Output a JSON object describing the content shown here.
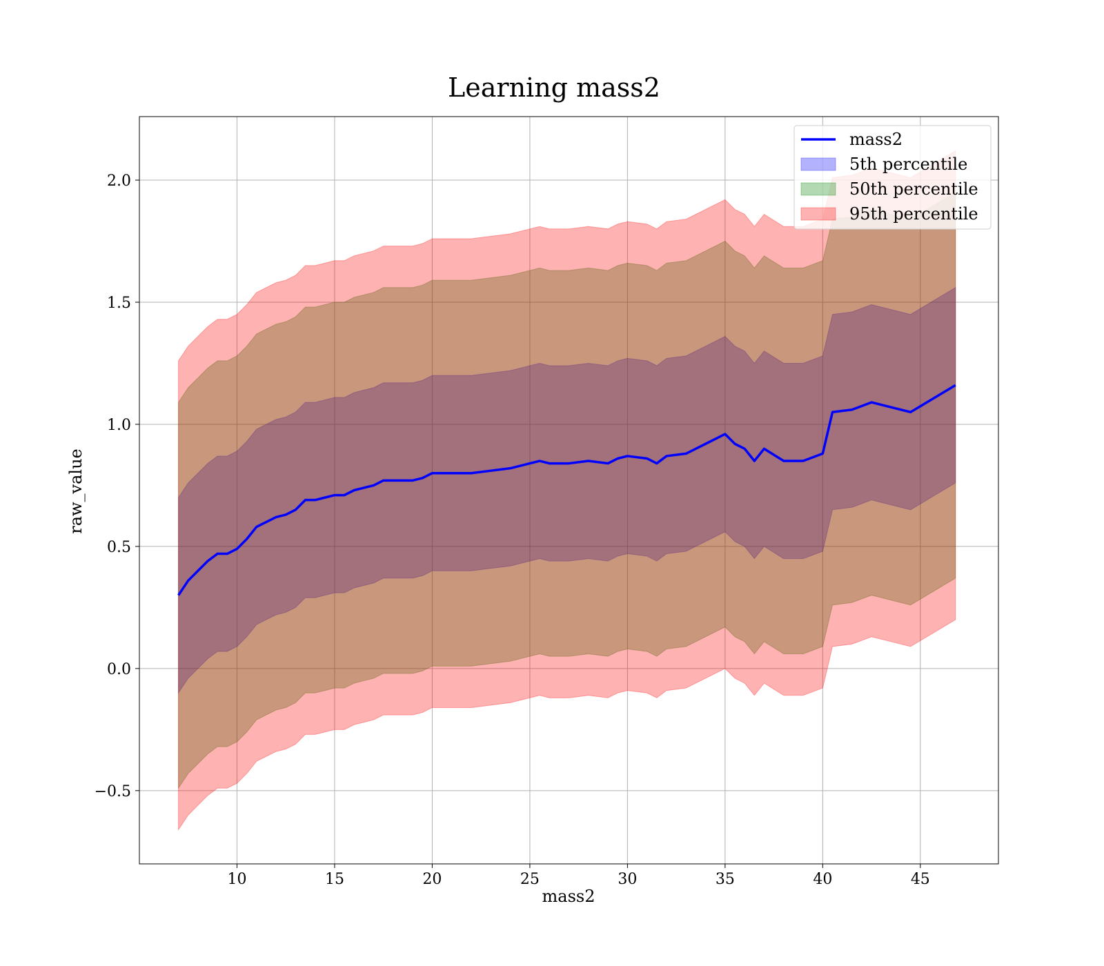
{
  "chart_data": {
    "type": "area",
    "title": "Learning mass2",
    "xlabel": "mass2",
    "ylabel": "raw_value",
    "xlim": [
      5,
      49
    ],
    "ylim": [
      -0.8,
      2.26
    ],
    "x_ticks": [
      10,
      15,
      20,
      25,
      30,
      35,
      40,
      45
    ],
    "x_tick_labels": [
      "10",
      "15",
      "20",
      "25",
      "30",
      "35",
      "40",
      "45"
    ],
    "y_ticks": [
      -0.5,
      0.0,
      0.5,
      1.0,
      1.5,
      2.0
    ],
    "y_tick_labels": [
      "−0.5",
      "0.0",
      "0.5",
      "1.0",
      "1.5",
      "2.0"
    ],
    "grid": true,
    "legend_position": "top-right",
    "x": [
      7.0,
      7.5,
      8.0,
      8.5,
      9.0,
      9.5,
      10.0,
      10.5,
      11.0,
      11.5,
      12.0,
      12.5,
      13.0,
      13.5,
      14.0,
      14.5,
      15.0,
      15.5,
      16.0,
      16.5,
      17.0,
      17.5,
      18.0,
      18.5,
      19.0,
      19.5,
      20.0,
      21.0,
      22.0,
      23.0,
      24.0,
      25.0,
      25.5,
      26.0,
      27.0,
      28.0,
      29.0,
      29.5,
      30.0,
      31.0,
      31.5,
      32.0,
      33.0,
      34.0,
      35.0,
      35.5,
      36.0,
      36.5,
      37.0,
      38.0,
      39.0,
      40.0,
      40.5,
      41.5,
      42.5,
      43.5,
      44.5,
      46.8
    ],
    "series": [
      {
        "name": "mass2",
        "kind": "line",
        "color": "#0000ff",
        "values": [
          0.3,
          0.36,
          0.4,
          0.44,
          0.47,
          0.47,
          0.49,
          0.53,
          0.58,
          0.6,
          0.62,
          0.63,
          0.65,
          0.69,
          0.69,
          0.7,
          0.71,
          0.71,
          0.73,
          0.74,
          0.75,
          0.77,
          0.77,
          0.77,
          0.77,
          0.78,
          0.8,
          0.8,
          0.8,
          0.81,
          0.82,
          0.84,
          0.85,
          0.84,
          0.84,
          0.85,
          0.84,
          0.86,
          0.87,
          0.86,
          0.84,
          0.87,
          0.88,
          0.92,
          0.96,
          0.92,
          0.9,
          0.85,
          0.9,
          0.85,
          0.85,
          0.88,
          1.05,
          1.06,
          1.09,
          1.07,
          1.05,
          1.16
        ]
      },
      {
        "name": "5th percentile",
        "kind": "band",
        "color": "#0000ff",
        "opacity": 0.3,
        "lower": [
          -0.1,
          -0.04,
          0.0,
          0.04,
          0.07,
          0.07,
          0.09,
          0.13,
          0.18,
          0.2,
          0.22,
          0.23,
          0.25,
          0.29,
          0.29,
          0.3,
          0.31,
          0.31,
          0.33,
          0.34,
          0.35,
          0.37,
          0.37,
          0.37,
          0.37,
          0.38,
          0.4,
          0.4,
          0.4,
          0.41,
          0.42,
          0.44,
          0.45,
          0.44,
          0.44,
          0.45,
          0.44,
          0.46,
          0.47,
          0.46,
          0.44,
          0.47,
          0.48,
          0.52,
          0.56,
          0.52,
          0.5,
          0.45,
          0.5,
          0.45,
          0.45,
          0.48,
          0.65,
          0.66,
          0.69,
          0.67,
          0.65,
          0.76
        ],
        "upper": [
          0.7,
          0.76,
          0.8,
          0.84,
          0.87,
          0.87,
          0.89,
          0.93,
          0.98,
          1.0,
          1.02,
          1.03,
          1.05,
          1.09,
          1.09,
          1.1,
          1.11,
          1.11,
          1.13,
          1.14,
          1.15,
          1.17,
          1.17,
          1.17,
          1.17,
          1.18,
          1.2,
          1.2,
          1.2,
          1.21,
          1.22,
          1.24,
          1.25,
          1.24,
          1.24,
          1.25,
          1.24,
          1.26,
          1.27,
          1.26,
          1.24,
          1.27,
          1.28,
          1.32,
          1.36,
          1.32,
          1.3,
          1.25,
          1.3,
          1.25,
          1.25,
          1.28,
          1.45,
          1.46,
          1.49,
          1.47,
          1.45,
          1.56
        ]
      },
      {
        "name": "50th percentile",
        "kind": "band",
        "color": "#008000",
        "opacity": 0.3,
        "lower": [
          -0.49,
          -0.43,
          -0.39,
          -0.35,
          -0.32,
          -0.32,
          -0.3,
          -0.26,
          -0.21,
          -0.19,
          -0.17,
          -0.16,
          -0.14,
          -0.1,
          -0.1,
          -0.09,
          -0.08,
          -0.08,
          -0.06,
          -0.05,
          -0.04,
          -0.02,
          -0.02,
          -0.02,
          -0.02,
          -0.01,
          0.01,
          0.01,
          0.01,
          0.02,
          0.03,
          0.05,
          0.06,
          0.05,
          0.05,
          0.06,
          0.05,
          0.07,
          0.08,
          0.07,
          0.05,
          0.08,
          0.09,
          0.13,
          0.17,
          0.13,
          0.11,
          0.06,
          0.11,
          0.06,
          0.06,
          0.09,
          0.26,
          0.27,
          0.3,
          0.28,
          0.26,
          0.37
        ],
        "upper": [
          1.09,
          1.15,
          1.19,
          1.23,
          1.26,
          1.26,
          1.28,
          1.32,
          1.37,
          1.39,
          1.41,
          1.42,
          1.44,
          1.48,
          1.48,
          1.49,
          1.5,
          1.5,
          1.52,
          1.53,
          1.54,
          1.56,
          1.56,
          1.56,
          1.56,
          1.57,
          1.59,
          1.59,
          1.59,
          1.6,
          1.61,
          1.63,
          1.64,
          1.63,
          1.63,
          1.64,
          1.63,
          1.65,
          1.66,
          1.65,
          1.63,
          1.66,
          1.67,
          1.71,
          1.75,
          1.71,
          1.69,
          1.64,
          1.69,
          1.64,
          1.64,
          1.67,
          1.84,
          1.85,
          1.88,
          1.86,
          1.84,
          1.95
        ]
      },
      {
        "name": "95th percentile",
        "kind": "band",
        "color": "#ff0000",
        "opacity": 0.3,
        "lower": [
          -0.66,
          -0.6,
          -0.56,
          -0.52,
          -0.49,
          -0.49,
          -0.47,
          -0.43,
          -0.38,
          -0.36,
          -0.34,
          -0.33,
          -0.31,
          -0.27,
          -0.27,
          -0.26,
          -0.25,
          -0.25,
          -0.23,
          -0.22,
          -0.21,
          -0.19,
          -0.19,
          -0.19,
          -0.19,
          -0.18,
          -0.16,
          -0.16,
          -0.16,
          -0.15,
          -0.14,
          -0.12,
          -0.11,
          -0.12,
          -0.12,
          -0.11,
          -0.12,
          -0.1,
          -0.09,
          -0.1,
          -0.12,
          -0.09,
          -0.08,
          -0.04,
          0.0,
          -0.04,
          -0.06,
          -0.11,
          -0.06,
          -0.11,
          -0.11,
          -0.08,
          0.09,
          0.1,
          0.13,
          0.11,
          0.09,
          0.2
        ],
        "upper": [
          1.26,
          1.32,
          1.36,
          1.4,
          1.43,
          1.43,
          1.45,
          1.49,
          1.54,
          1.56,
          1.58,
          1.59,
          1.61,
          1.65,
          1.65,
          1.66,
          1.67,
          1.67,
          1.69,
          1.7,
          1.71,
          1.73,
          1.73,
          1.73,
          1.73,
          1.74,
          1.76,
          1.76,
          1.76,
          1.77,
          1.78,
          1.8,
          1.81,
          1.8,
          1.8,
          1.81,
          1.8,
          1.82,
          1.83,
          1.82,
          1.8,
          1.83,
          1.84,
          1.88,
          1.92,
          1.88,
          1.86,
          1.81,
          1.86,
          1.81,
          1.81,
          1.84,
          2.01,
          2.02,
          2.05,
          2.03,
          2.01,
          2.12
        ]
      }
    ],
    "legend": [
      {
        "label": "mass2",
        "kind": "line",
        "color": "#0000ff"
      },
      {
        "label": "5th percentile",
        "kind": "patch",
        "color": "#0000ff"
      },
      {
        "label": "50th percentile",
        "kind": "patch",
        "color": "#008000"
      },
      {
        "label": "95th percentile",
        "kind": "patch",
        "color": "#ff0000"
      }
    ]
  }
}
